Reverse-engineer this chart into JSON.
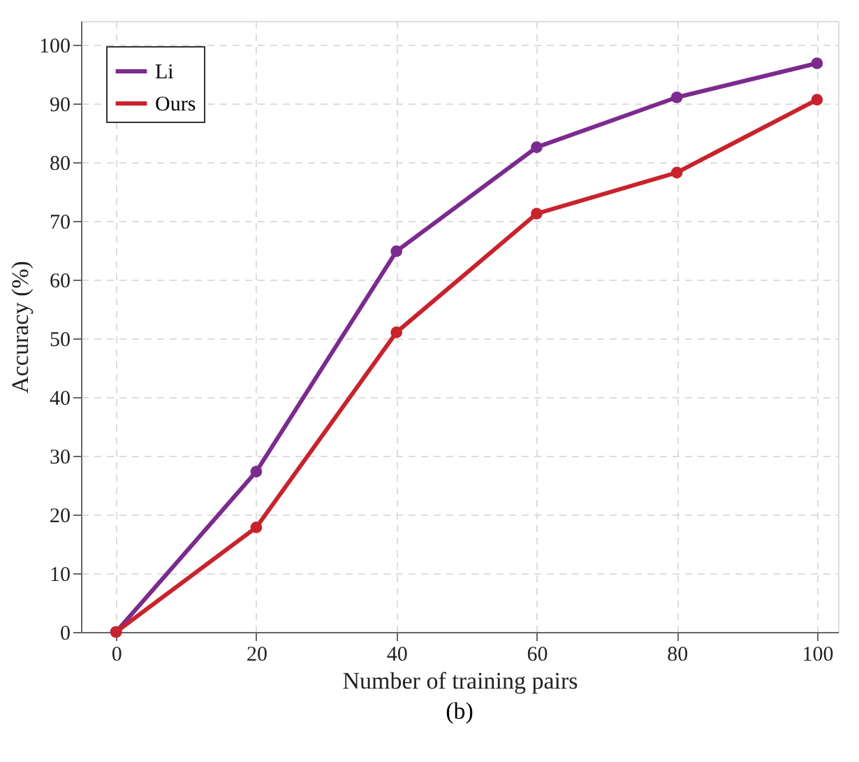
{
  "chart_data": {
    "type": "line",
    "xlabel": "Number of training pairs",
    "ylabel": "Accuracy (%)",
    "annotations": [
      "(b)"
    ],
    "x": [
      0,
      20,
      40,
      60,
      80,
      100
    ],
    "series": [
      {
        "name": "Li",
        "color": "#7b2a8e",
        "values": [
          0,
          27.3,
          64.8,
          82.5,
          91,
          96.8
        ]
      },
      {
        "name": "Ours",
        "color": "#c8232c",
        "values": [
          0,
          17.8,
          51,
          71.2,
          78.2,
          90.6
        ]
      }
    ],
    "xlim": [
      -5,
      103
    ],
    "xticks": [
      0,
      20,
      40,
      60,
      80,
      100
    ],
    "ylim": [
      0,
      104
    ],
    "yticks": [
      0,
      10,
      20,
      30,
      40,
      50,
      60,
      70,
      80,
      90,
      100
    ],
    "grid": true,
    "legend": "top left",
    "marker": "circle",
    "line_style": "solid"
  }
}
